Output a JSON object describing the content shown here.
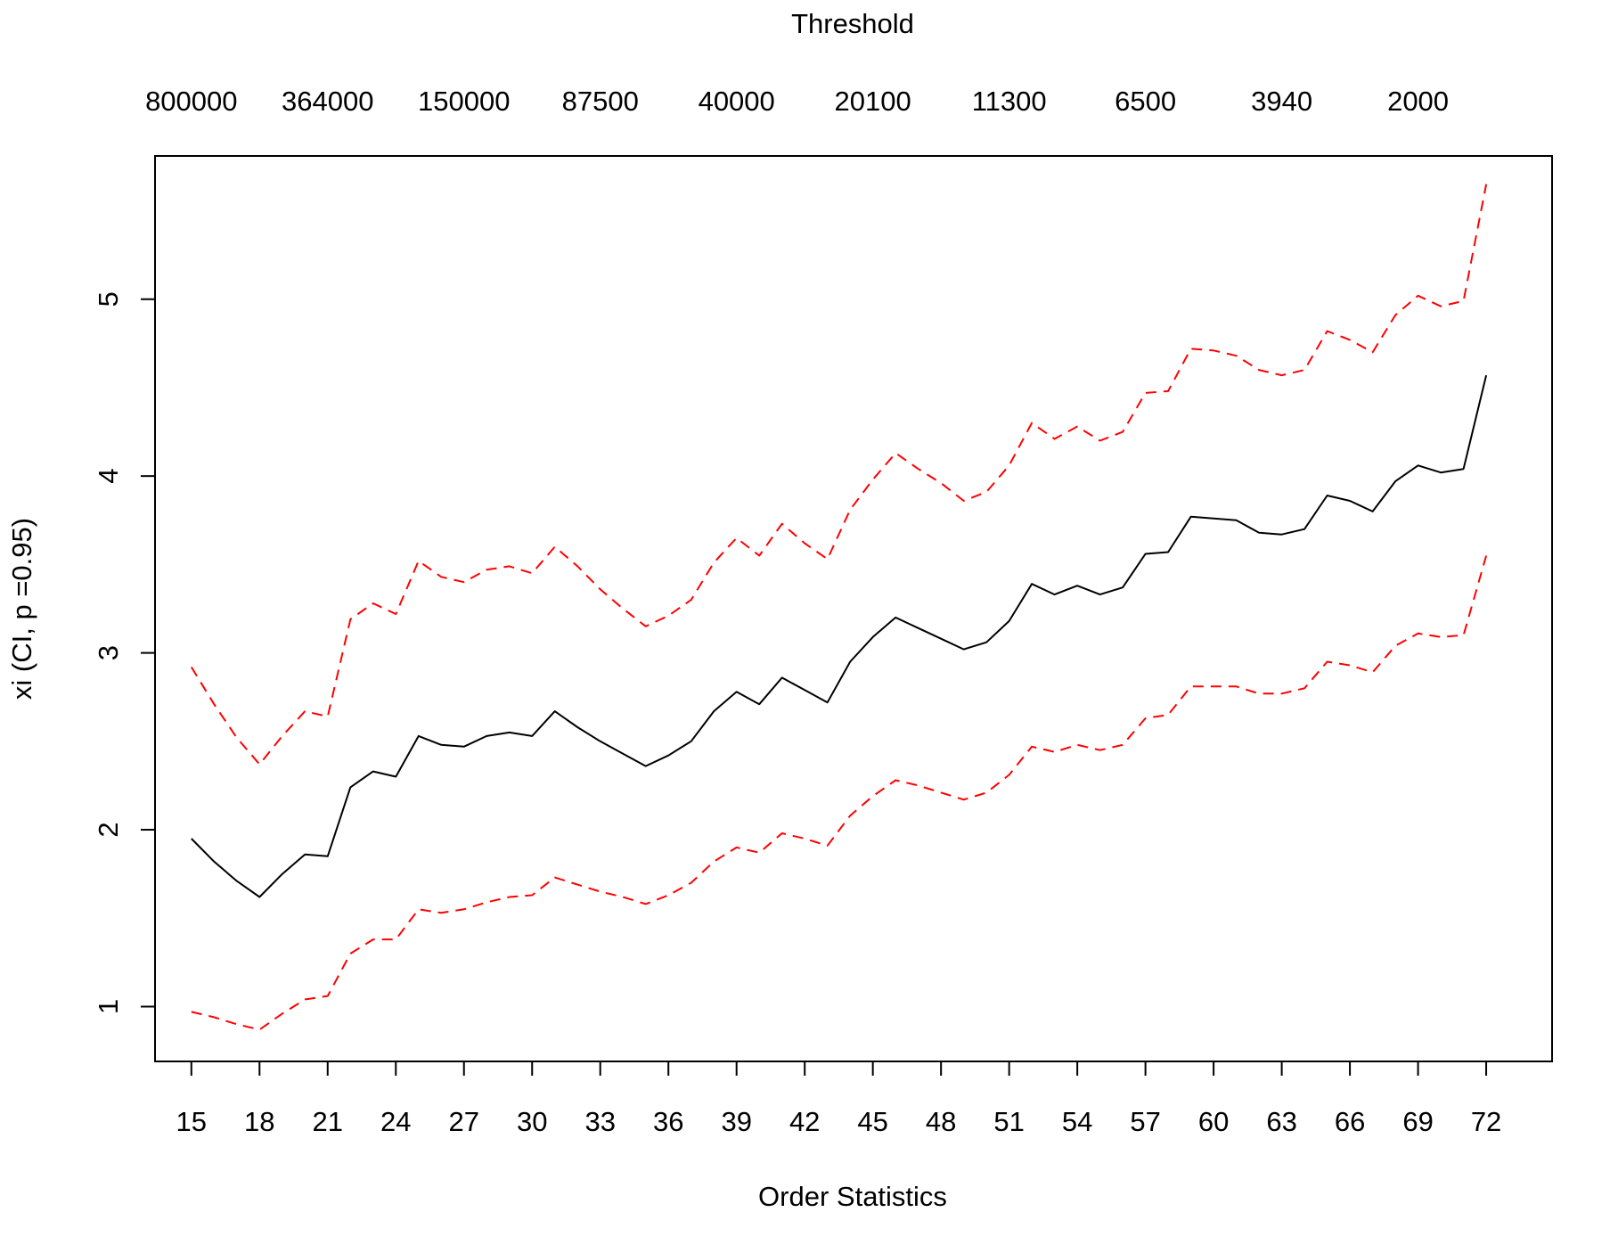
{
  "chart_data": {
    "type": "line",
    "xlabel": "Order Statistics",
    "ylabel": "xi (CI, p =0.95)",
    "top_axis_label": "Threshold",
    "xlim": [
      13.4,
      74.9
    ],
    "ylim": [
      0.69,
      5.81
    ],
    "x_ticks": [
      15,
      18,
      21,
      24,
      27,
      30,
      33,
      36,
      39,
      42,
      45,
      48,
      51,
      54,
      57,
      60,
      63,
      66,
      69,
      72
    ],
    "y_ticks": [
      1,
      2,
      3,
      4,
      5
    ],
    "top_ticks": [
      {
        "order": 15,
        "label": "800000"
      },
      {
        "order": 21,
        "label": "364000"
      },
      {
        "order": 27,
        "label": "150000"
      },
      {
        "order": 33,
        "label": "87500"
      },
      {
        "order": 39,
        "label": "40000"
      },
      {
        "order": 45,
        "label": "20100"
      },
      {
        "order": 51,
        "label": "11300"
      },
      {
        "order": 57,
        "label": "6500"
      },
      {
        "order": 63,
        "label": "3940"
      },
      {
        "order": 69,
        "label": "2000"
      }
    ],
    "x": [
      15,
      16,
      17,
      18,
      19,
      20,
      21,
      22,
      23,
      24,
      25,
      26,
      27,
      28,
      29,
      30,
      31,
      32,
      33,
      34,
      35,
      36,
      37,
      38,
      39,
      40,
      41,
      42,
      43,
      44,
      45,
      46,
      47,
      48,
      49,
      50,
      51,
      52,
      53,
      54,
      55,
      56,
      57,
      58,
      59,
      60,
      61,
      62,
      63,
      64,
      65,
      66,
      67,
      68,
      69,
      70,
      71,
      72
    ],
    "series": [
      {
        "color": "#000000",
        "dash": "solid",
        "values": [
          1.95,
          1.82,
          1.71,
          1.62,
          1.75,
          1.86,
          1.85,
          2.24,
          2.33,
          2.3,
          2.53,
          2.48,
          2.47,
          2.53,
          2.55,
          2.53,
          2.67,
          2.58,
          2.5,
          2.43,
          2.36,
          2.42,
          2.5,
          2.67,
          2.78,
          2.71,
          2.86,
          2.79,
          2.72,
          2.95,
          3.09,
          3.2,
          3.14,
          3.08,
          3.02,
          3.06,
          3.18,
          3.39,
          3.33,
          3.38,
          3.33,
          3.37,
          3.56,
          3.57,
          3.77,
          3.76,
          3.75,
          3.68,
          3.67,
          3.7,
          3.89,
          3.86,
          3.8,
          3.97,
          4.06,
          4.02,
          4.04,
          4.57
        ]
      },
      {
        "color": "#ff0000",
        "dash": "dashed",
        "values": [
          2.92,
          2.71,
          2.52,
          2.37,
          2.53,
          2.67,
          2.64,
          3.19,
          3.28,
          3.22,
          3.52,
          3.43,
          3.4,
          3.47,
          3.49,
          3.45,
          3.6,
          3.49,
          3.36,
          3.25,
          3.15,
          3.21,
          3.3,
          3.51,
          3.65,
          3.55,
          3.73,
          3.62,
          3.53,
          3.81,
          3.98,
          4.13,
          4.04,
          3.96,
          3.86,
          3.91,
          4.06,
          4.3,
          4.21,
          4.28,
          4.2,
          4.25,
          4.47,
          4.48,
          4.72,
          4.71,
          4.68,
          4.6,
          4.57,
          4.6,
          4.82,
          4.77,
          4.7,
          4.91,
          5.02,
          4.96,
          4.99,
          5.65
        ]
      },
      {
        "color": "#ff0000",
        "dash": "dashed",
        "values": [
          0.97,
          0.94,
          0.9,
          0.87,
          0.96,
          1.04,
          1.06,
          1.3,
          1.38,
          1.38,
          1.55,
          1.53,
          1.55,
          1.59,
          1.62,
          1.63,
          1.73,
          1.69,
          1.65,
          1.62,
          1.58,
          1.63,
          1.7,
          1.82,
          1.9,
          1.87,
          1.98,
          1.95,
          1.91,
          2.08,
          2.19,
          2.28,
          2.25,
          2.21,
          2.17,
          2.21,
          2.31,
          2.47,
          2.44,
          2.48,
          2.45,
          2.48,
          2.63,
          2.65,
          2.81,
          2.81,
          2.81,
          2.77,
          2.77,
          2.8,
          2.95,
          2.93,
          2.89,
          3.04,
          3.11,
          3.09,
          3.1,
          3.55
        ]
      }
    ],
    "grid": false,
    "legend": "none"
  }
}
